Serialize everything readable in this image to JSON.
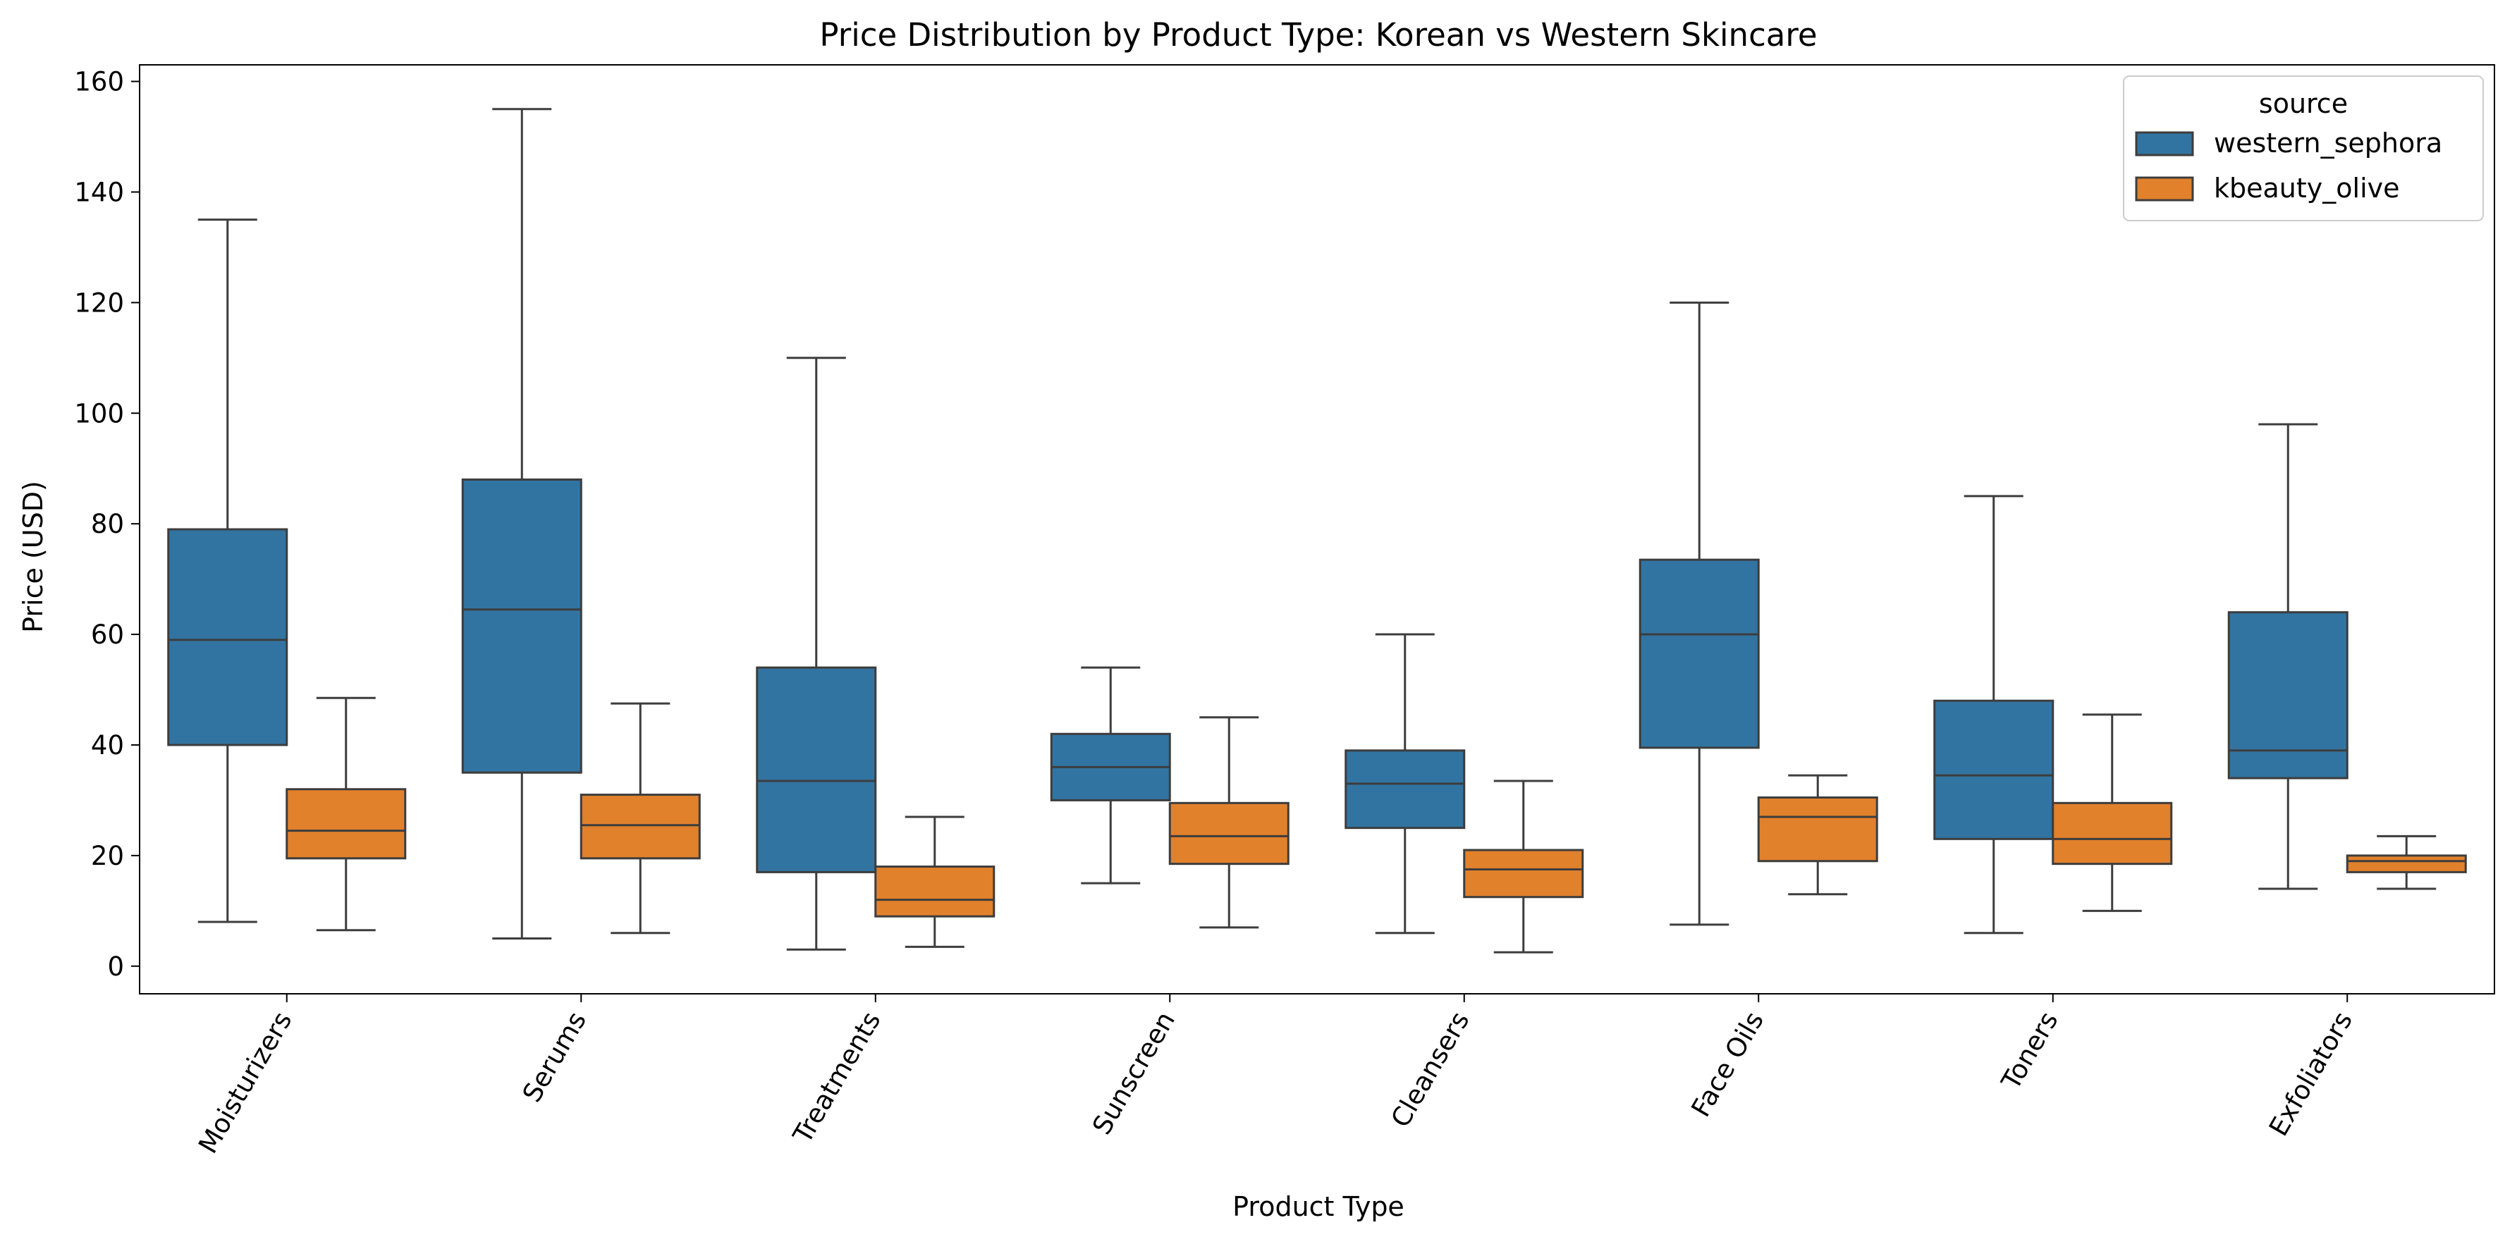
{
  "chart_data": {
    "type": "box",
    "title": "Price Distribution by Product Type: Korean vs Western Skincare",
    "xlabel": "Product Type",
    "ylabel": "Price (USD)",
    "ylim": [
      -5,
      163
    ],
    "yticks": [
      0,
      20,
      40,
      60,
      80,
      100,
      120,
      140,
      160
    ],
    "grid": false,
    "legend": {
      "title": "source",
      "placement": "top-right"
    },
    "categories": [
      "Moisturizers",
      "Serums",
      "Treatments",
      "Sunscreen",
      "Cleansers",
      "Face Oils",
      "Toners",
      "Exfoliators"
    ],
    "series": [
      {
        "name": "western_sephora",
        "color": "#3274a1",
        "boxes": [
          {
            "whisker_low": 8,
            "q1": 40,
            "median": 59,
            "q3": 79,
            "whisker_high": 135
          },
          {
            "whisker_low": 5,
            "q1": 35,
            "median": 64.5,
            "q3": 88,
            "whisker_high": 155
          },
          {
            "whisker_low": 3,
            "q1": 17,
            "median": 33.5,
            "q3": 54,
            "whisker_high": 110
          },
          {
            "whisker_low": 15,
            "q1": 30,
            "median": 36,
            "q3": 42,
            "whisker_high": 54
          },
          {
            "whisker_low": 6,
            "q1": 25,
            "median": 33,
            "q3": 39,
            "whisker_high": 60
          },
          {
            "whisker_low": 7.5,
            "q1": 39.5,
            "median": 60,
            "q3": 73.5,
            "whisker_high": 120
          },
          {
            "whisker_low": 6,
            "q1": 23,
            "median": 34.5,
            "q3": 48,
            "whisker_high": 85
          },
          {
            "whisker_low": 14,
            "q1": 34,
            "median": 39,
            "q3": 64,
            "whisker_high": 98
          }
        ]
      },
      {
        "name": "kbeauty_olive",
        "color": "#e1812c",
        "boxes": [
          {
            "whisker_low": 6.5,
            "q1": 19.5,
            "median": 24.5,
            "q3": 32,
            "whisker_high": 48.5
          },
          {
            "whisker_low": 6,
            "q1": 19.5,
            "median": 25.5,
            "q3": 31,
            "whisker_high": 47.5
          },
          {
            "whisker_low": 3.5,
            "q1": 9,
            "median": 12,
            "q3": 18,
            "whisker_high": 27
          },
          {
            "whisker_low": 7,
            "q1": 18.5,
            "median": 23.5,
            "q3": 29.5,
            "whisker_high": 45
          },
          {
            "whisker_low": 2.5,
            "q1": 12.5,
            "median": 17.5,
            "q3": 21,
            "whisker_high": 33.5
          },
          {
            "whisker_low": 13,
            "q1": 19,
            "median": 27,
            "q3": 30.5,
            "whisker_high": 34.5
          },
          {
            "whisker_low": 10,
            "q1": 18.5,
            "median": 23,
            "q3": 29.5,
            "whisker_high": 45.5
          },
          {
            "whisker_low": 14,
            "q1": 17,
            "median": 19,
            "q3": 20,
            "whisker_high": 23.5
          }
        ]
      }
    ]
  }
}
